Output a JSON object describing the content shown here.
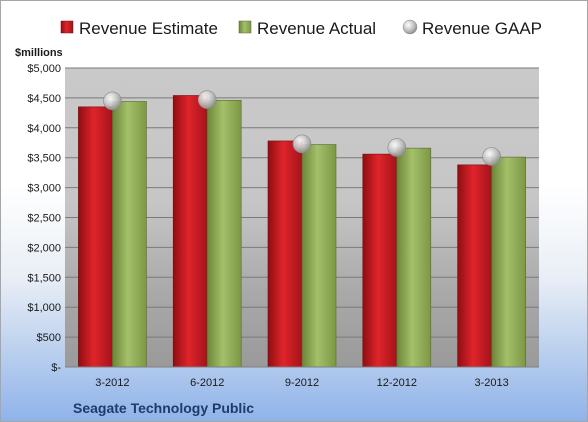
{
  "chart_data": {
    "type": "bar",
    "title": "",
    "ylabel": "$millions",
    "xlabel": "",
    "footer": "Seagate Technology Public",
    "categories": [
      "3-2012",
      "6-2012",
      "9-2012",
      "12-2012",
      "3-2013"
    ],
    "y_ticks": [
      "$-",
      "$500",
      "$1,000",
      "$1,500",
      "$2,000",
      "$2,500",
      "$3,000",
      "$3,500",
      "$4,000",
      "$4,500",
      "$5,000"
    ],
    "ylim": [
      0,
      5000
    ],
    "grid": true,
    "legend_position": "top",
    "series": [
      {
        "name": "Revenue Estimate",
        "kind": "bar",
        "color": "#c0181f",
        "values": [
          4350,
          4540,
          3780,
          3560,
          3380
        ]
      },
      {
        "name": "Revenue Actual",
        "kind": "bar",
        "color": "#8ba654",
        "values": [
          4440,
          4460,
          3720,
          3660,
          3510
        ]
      },
      {
        "name": "Revenue GAAP",
        "kind": "marker",
        "color": "#b3b3b3",
        "values": [
          4450,
          4470,
          3730,
          3670,
          3520
        ]
      }
    ]
  }
}
